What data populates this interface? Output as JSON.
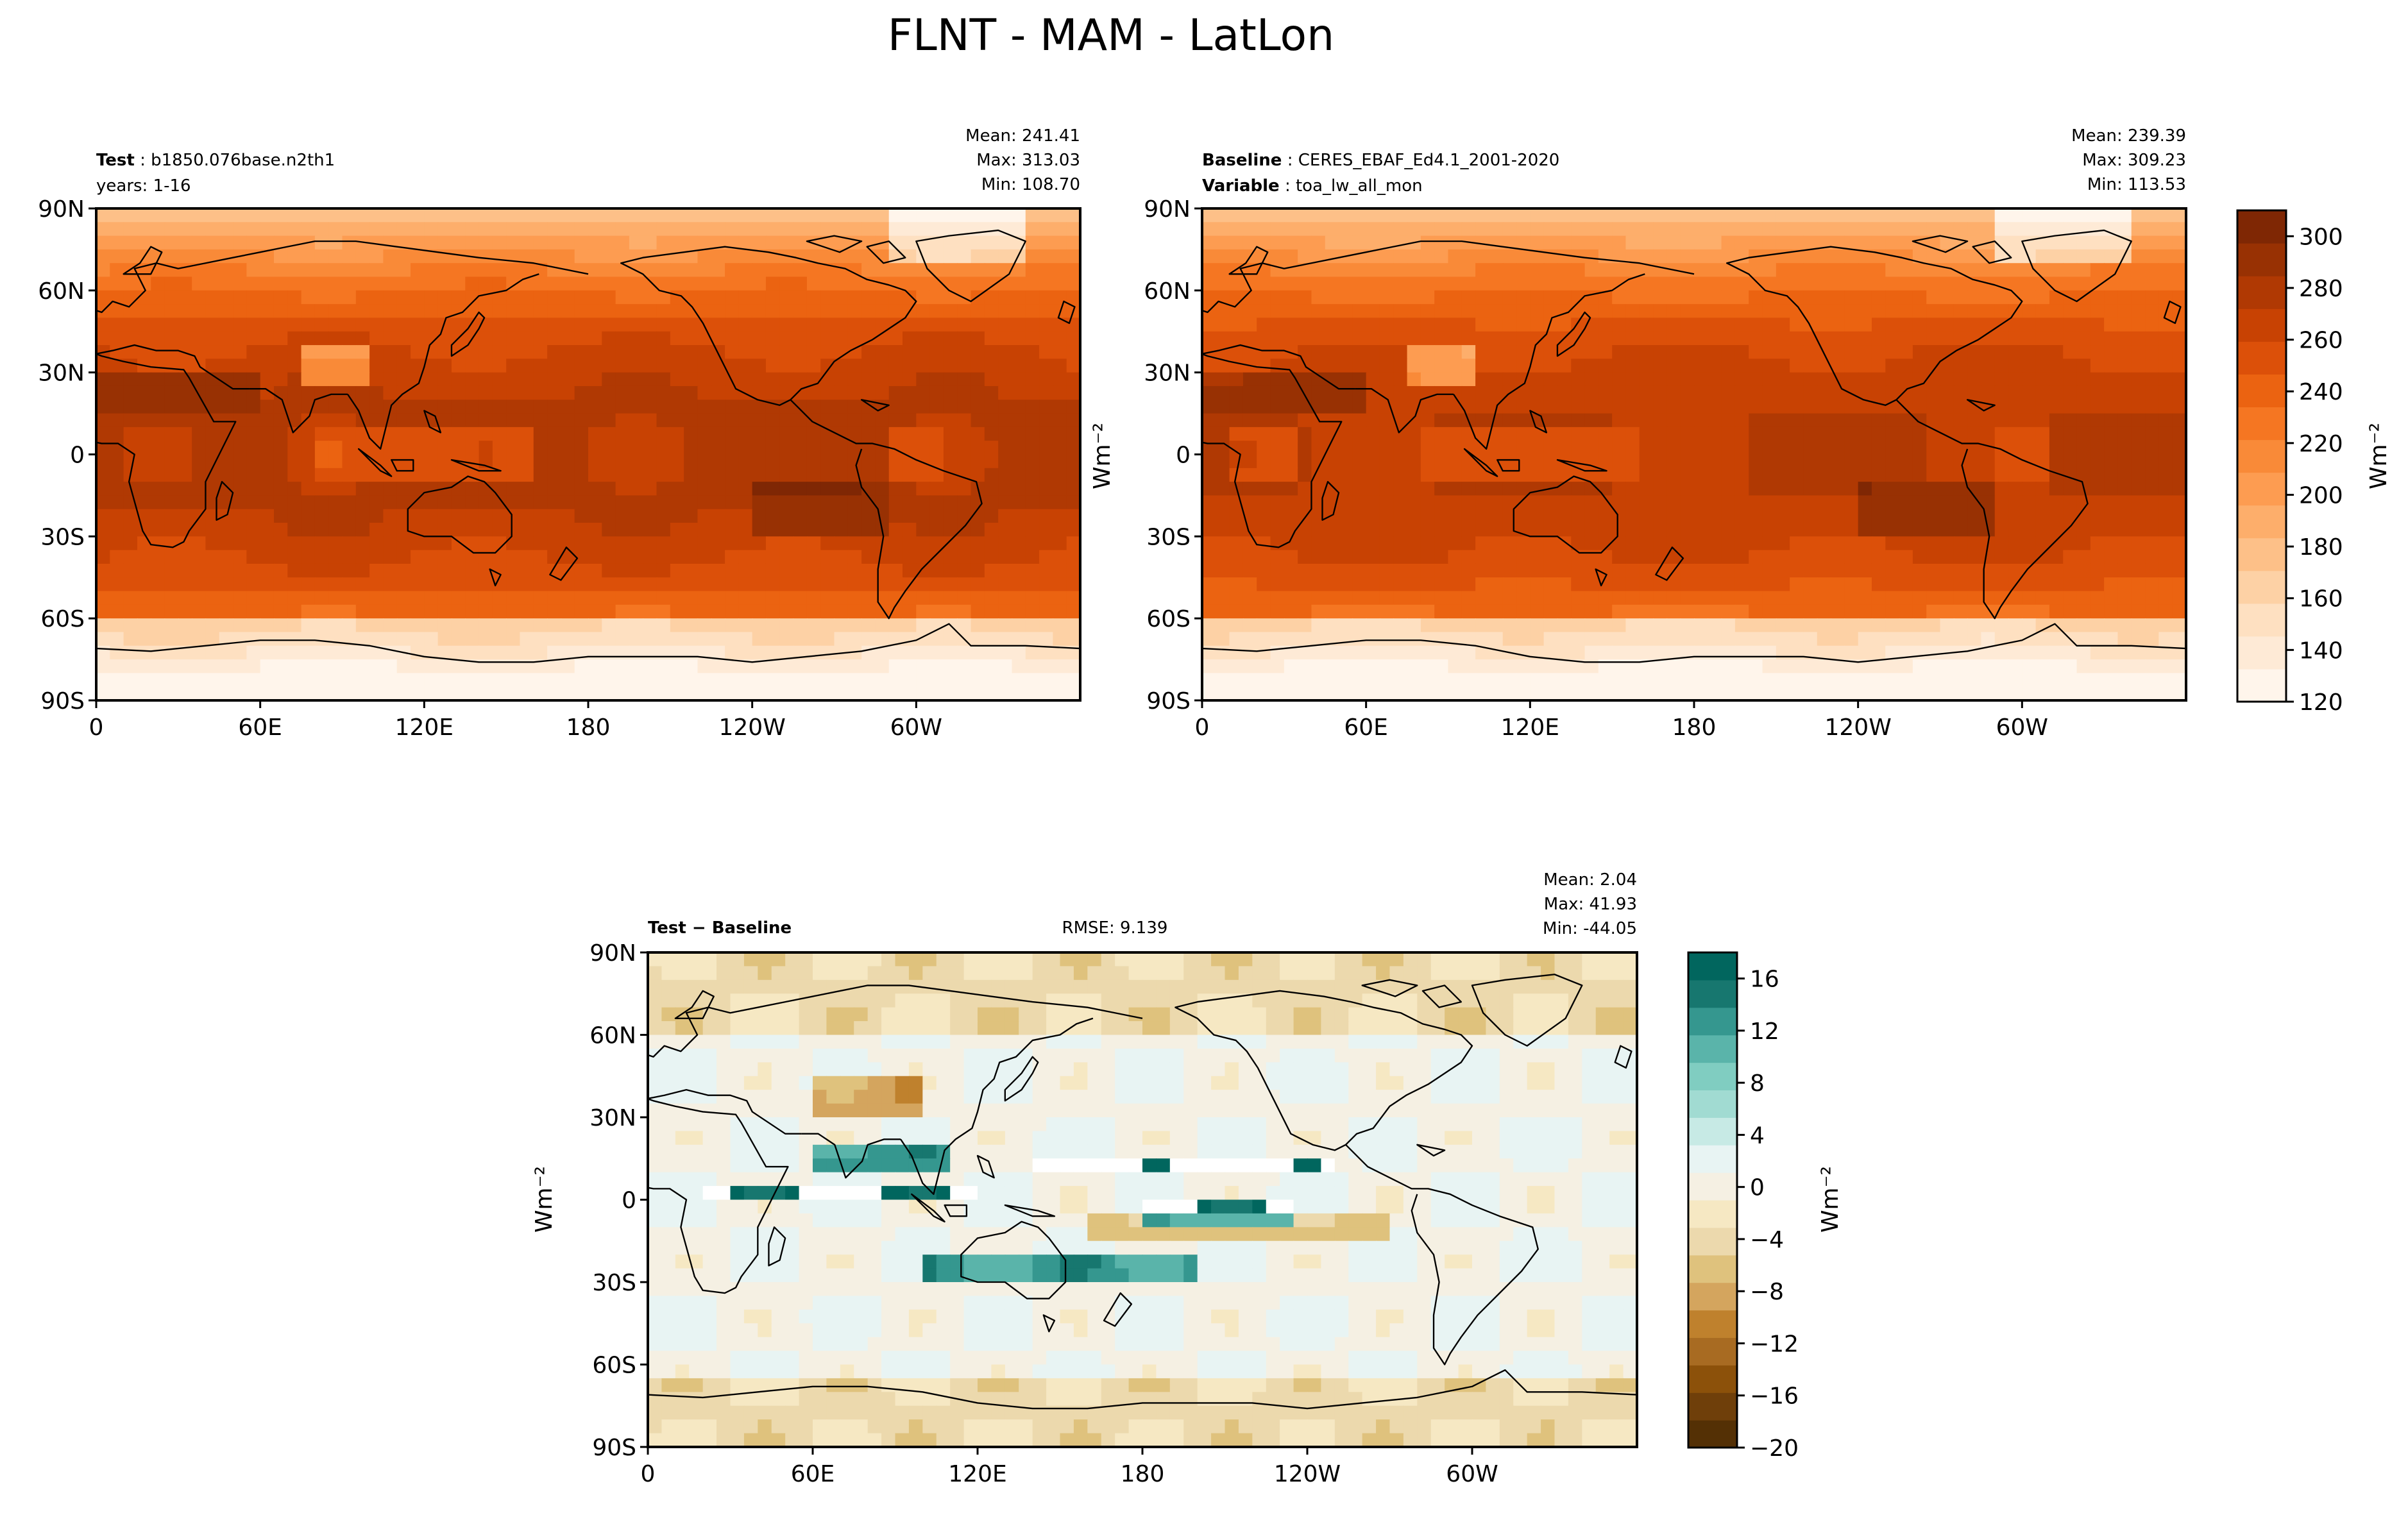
{
  "title": "FLNT - MAM - LatLon",
  "colors": {
    "oranges": [
      "#fff5eb",
      "#feead6",
      "#fee0c1",
      "#fdd1a5",
      "#fdc088",
      "#fdae6b",
      "#fd9c51",
      "#f98a38",
      "#f57622",
      "#eb6311",
      "#dc5009",
      "#c84203",
      "#b03903",
      "#983103",
      "#7f2704"
    ],
    "brbg": [
      "#543005",
      "#6f3f0a",
      "#8c510a",
      "#a86b22",
      "#bf812d",
      "#d4a55e",
      "#dfc27d",
      "#ecd9ad",
      "#f6e8c3",
      "#f5f0e3",
      "#e8f4f3",
      "#c7eae5",
      "#a1dbd2",
      "#80cdc1",
      "#5ab4aa",
      "#35978f",
      "#17776f",
      "#01665e"
    ],
    "coast": "#000000"
  },
  "lat_ticks": [
    "90N",
    "60N",
    "30N",
    "0",
    "30S",
    "60S",
    "90S"
  ],
  "lon_ticks": [
    "0",
    "60E",
    "120E",
    "180",
    "120W",
    "60W"
  ],
  "test_panel": {
    "label_bold": "Test",
    "label_value": "b1850.076base.n2th1",
    "years": "years: 1-16",
    "mean": "Mean: 241.41",
    "max": "Max: 313.03",
    "min": "Min: 108.70"
  },
  "baseline_panel": {
    "label_bold": "Baseline",
    "label_value": "CERES_EBAF_Ed4.1_2001-2020",
    "variable_bold": "Variable",
    "variable_value": "toa_lw_all_mon",
    "mean": "Mean: 239.39",
    "max": "Max: 309.23",
    "min": "Min: 113.53"
  },
  "diff_panel": {
    "label": "Test − Baseline",
    "rmse": "RMSE: 9.139",
    "mean": "Mean:  2.04",
    "max": "Max: 41.93",
    "min": "Min: -44.05"
  },
  "colorbar_top": {
    "ticks": [
      "120",
      "140",
      "160",
      "180",
      "200",
      "220",
      "240",
      "260",
      "280",
      "300"
    ],
    "range": [
      120,
      310
    ],
    "units": "Wm⁻²"
  },
  "colorbar_diff": {
    "ticks": [
      "−20",
      "−16",
      "−12",
      "−8",
      "−4",
      "0",
      "4",
      "8",
      "12",
      "16"
    ],
    "range": [
      -20,
      18
    ],
    "units": "Wm⁻²"
  },
  "diff_ylabel": "Wm⁻²"
}
